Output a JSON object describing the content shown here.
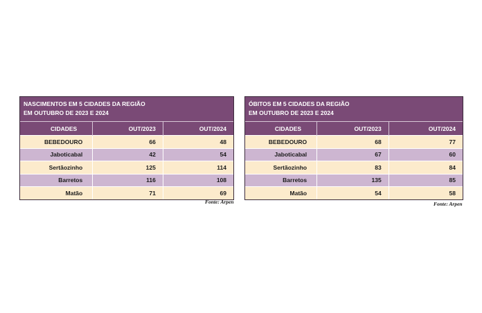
{
  "left": {
    "title_line1": "NASCIMENTOS EM 5 CIDADES DA REGIÃO",
    "title_line2": "EM OUTUBRO DE 2023 E 2024",
    "headers": [
      "CIDADES",
      "OUT/2023",
      "OUT/2024"
    ],
    "rows": [
      {
        "city": "BEBEDOURO",
        "v2023": "66",
        "v2024": "48"
      },
      {
        "city": "Jaboticabal",
        "v2023": "42",
        "v2024": "54"
      },
      {
        "city": "Sertãozinho",
        "v2023": "125",
        "v2024": "114"
      },
      {
        "city": "Barretos",
        "v2023": "116",
        "v2024": "108"
      },
      {
        "city": "Matão",
        "v2023": "71",
        "v2024": "69"
      }
    ],
    "source": "Fonte: Arpen"
  },
  "right": {
    "title_line1": "ÓBITOS EM 5 CIDADES DA REGIÃO",
    "title_line2": "EM OUTUBRO DE 2023 E 2024",
    "headers": [
      "CIDADES",
      "OUT/2023",
      "OUT/2024"
    ],
    "rows": [
      {
        "city": "BEBEDOURO",
        "v2023": "68",
        "v2024": "77"
      },
      {
        "city": "Jaboticabal",
        "v2023": "67",
        "v2024": "60"
      },
      {
        "city": "Sertãozinho",
        "v2023": "83",
        "v2024": "84"
      },
      {
        "city": "Barretos",
        "v2023": "135",
        "v2024": "85"
      },
      {
        "city": "Matão",
        "v2023": "54",
        "v2024": "58"
      }
    ],
    "source": "Fonte: Arpen"
  },
  "colors": {
    "header_purple": "#7a4a76",
    "row_cream": "#fcebcc",
    "row_lilac": "#cdb6d1"
  }
}
